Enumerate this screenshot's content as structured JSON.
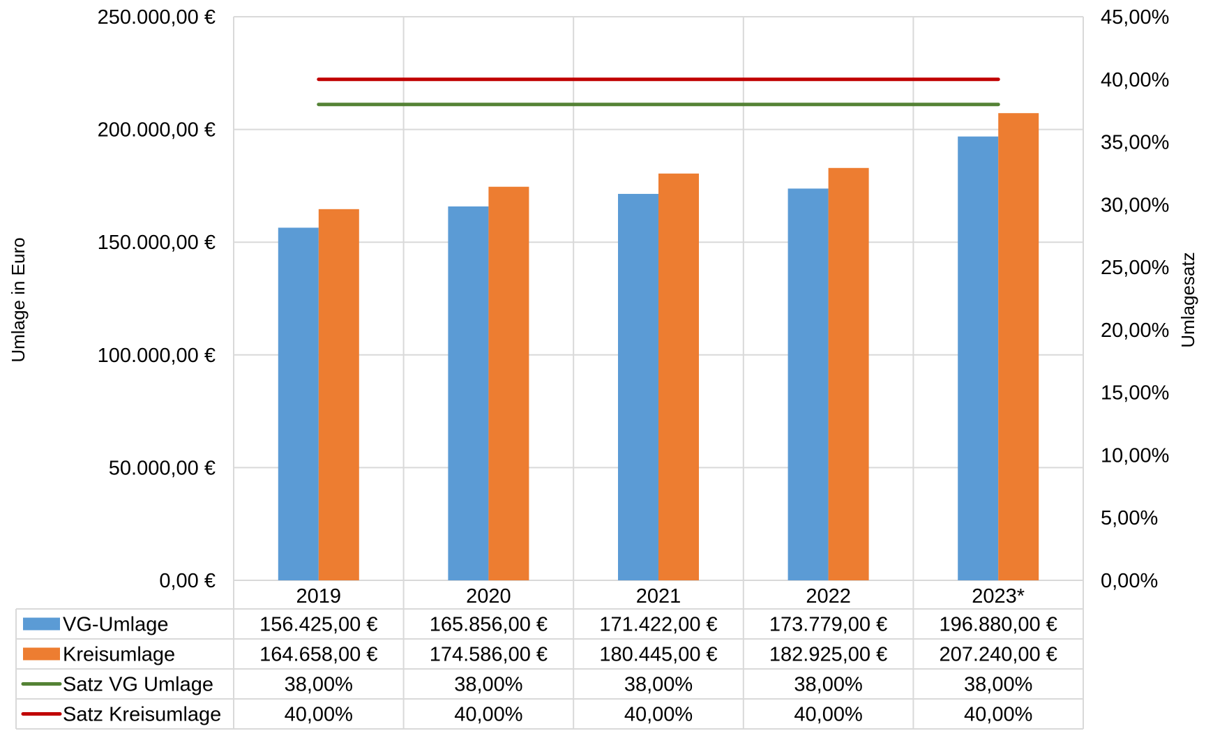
{
  "chart_data": {
    "type": "bar",
    "categories": [
      "2019",
      "2020",
      "2021",
      "2022",
      "2023*"
    ],
    "series": [
      {
        "name": "VG-Umlage",
        "type": "bar",
        "axis": "left",
        "color": "#5B9BD5",
        "values": [
          156425,
          165856,
          171422,
          173779,
          196880
        ],
        "labels": [
          "156.425,00 €",
          "165.856,00 €",
          "171.422,00 €",
          "173.779,00 €",
          "196.880,00 €"
        ]
      },
      {
        "name": "Kreisumlage",
        "type": "bar",
        "axis": "left",
        "color": "#ED7D31",
        "values": [
          164658,
          174586,
          180445,
          182925,
          207240
        ],
        "labels": [
          "164.658,00 €",
          "174.586,00 €",
          "180.445,00 €",
          "182.925,00 €",
          "207.240,00 €"
        ]
      },
      {
        "name": "Satz VG Umlage",
        "type": "line",
        "axis": "right",
        "color": "#548235",
        "values": [
          38,
          38,
          38,
          38,
          38
        ],
        "labels": [
          "38,00%",
          "38,00%",
          "38,00%",
          "38,00%",
          "38,00%"
        ]
      },
      {
        "name": "Satz Kreisumlage",
        "type": "line",
        "axis": "right",
        "color": "#C00000",
        "values": [
          40,
          40,
          40,
          40,
          40
        ],
        "labels": [
          "40,00%",
          "40,00%",
          "40,00%",
          "40,00%",
          "40,00%"
        ]
      }
    ],
    "ylabel": "Umlage in Euro",
    "y2label": "Umlagesatz",
    "ylim": [
      0,
      250000
    ],
    "y2lim": [
      0,
      45
    ],
    "yticks": [
      0,
      50000,
      100000,
      150000,
      200000,
      250000
    ],
    "yticklabels": [
      "0,00 €",
      "50.000,00 €",
      "100.000,00 €",
      "150.000,00 €",
      "200.000,00 €",
      "250.000,00 €"
    ],
    "y2ticks": [
      0,
      5,
      10,
      15,
      20,
      25,
      30,
      35,
      40,
      45
    ],
    "y2ticklabels": [
      "0,00%",
      "5,00%",
      "10,00%",
      "15,00%",
      "20,00%",
      "25,00%",
      "30,00%",
      "35,00%",
      "40,00%",
      "45,00%"
    ],
    "grid": true,
    "legend": "data-table-below"
  }
}
